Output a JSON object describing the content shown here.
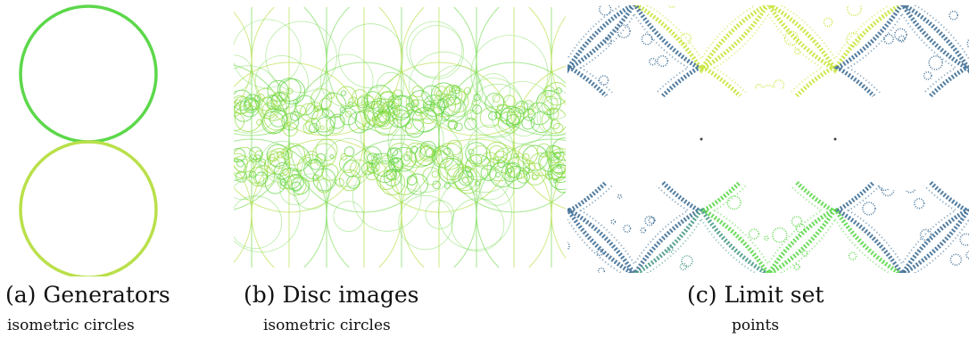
{
  "panels": [
    {
      "label": "(a) Generators",
      "sublabel": "isometric circles"
    },
    {
      "label": "(b) Disc images",
      "sublabel": "isometric circles"
    },
    {
      "label": "(c) Limit set",
      "sublabel": "points"
    }
  ],
  "colors": {
    "green_bright": "#5cd84a",
    "green_yellow": "#b9e04a",
    "yellow_green": "#c8e63c",
    "blue_steel": "#3f6f96",
    "teal": "#4a9a8a",
    "line_green": "#7bdc5a"
  }
}
